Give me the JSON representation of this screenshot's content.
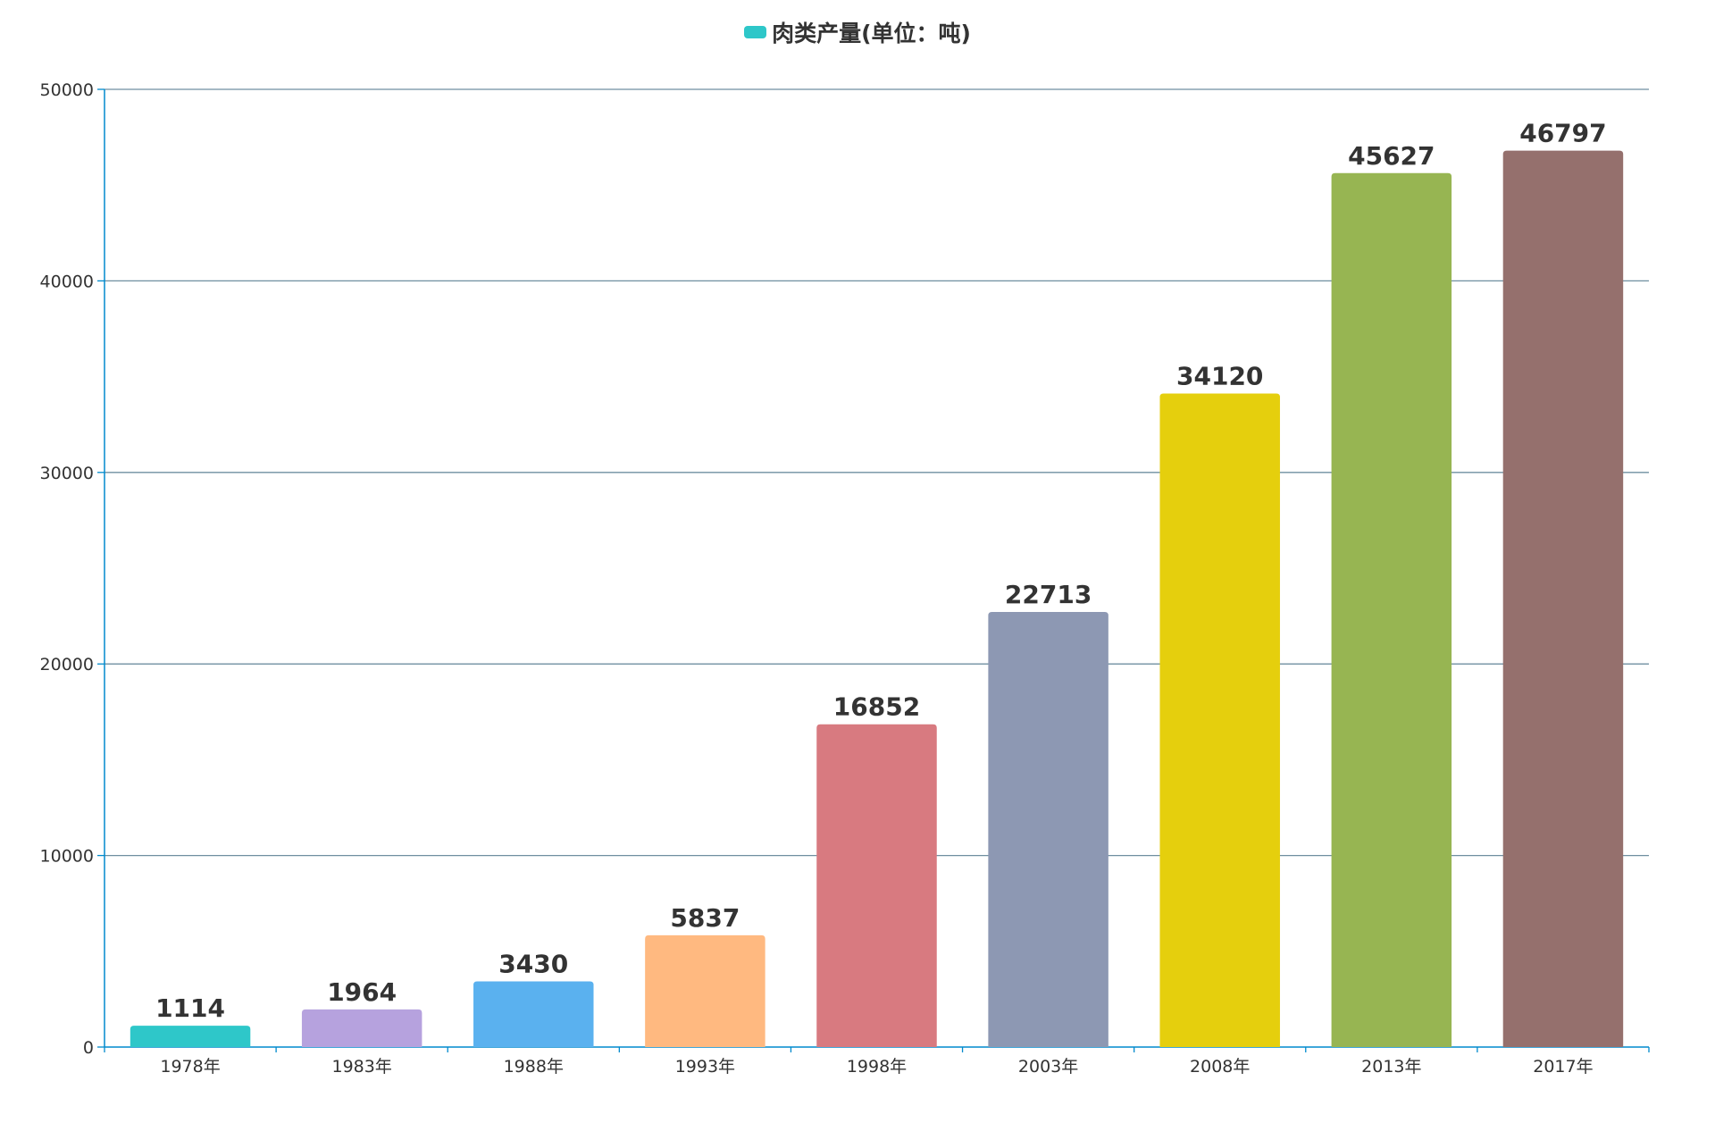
{
  "chart_data": {
    "type": "bar",
    "title": "",
    "legend": {
      "label": "肉类产量(单位：吨)",
      "color": "#2ec7c9",
      "position": "top-center"
    },
    "categories": [
      "1978年",
      "1983年",
      "1988年",
      "1993年",
      "1998年",
      "2003年",
      "2008年",
      "2013年",
      "2017年"
    ],
    "series": [
      {
        "name": "肉类产量(单位：吨)",
        "values": [
          1114,
          1964,
          3430,
          5837,
          16852,
          22713,
          34120,
          45627,
          46797
        ]
      }
    ],
    "bar_colors": [
      "#2ec7c9",
      "#b6a2de",
      "#5ab1ef",
      "#ffb980",
      "#d87a80",
      "#8d98b3",
      "#e5cf0d",
      "#97b552",
      "#95706d"
    ],
    "xlabel": "",
    "ylabel": "",
    "ylim": [
      0,
      50000
    ],
    "yticks": [
      0,
      10000,
      20000,
      30000,
      40000,
      50000
    ],
    "grid": true,
    "axis_color": "#008acd",
    "grid_color": "#6f8fa0"
  }
}
